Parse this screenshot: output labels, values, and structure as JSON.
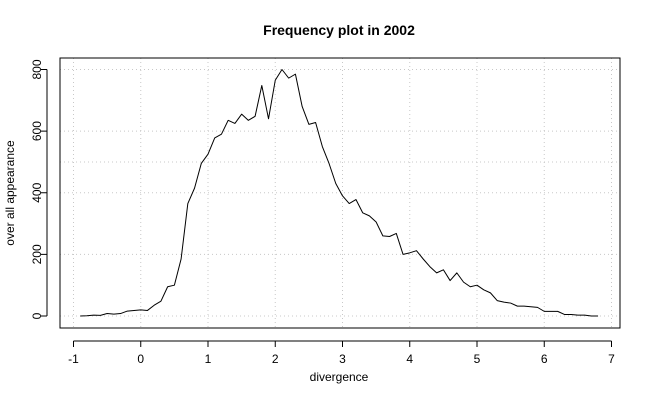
{
  "chart_data": {
    "type": "line",
    "title": "Frequency plot in 2002",
    "xlabel": "divergence",
    "ylabel": "over all appearance",
    "xlim": [
      -1,
      7
    ],
    "ylim": [
      0,
      800
    ],
    "x_ticks": [
      "-1",
      "0",
      "1",
      "2",
      "3",
      "4",
      "5",
      "6",
      "7"
    ],
    "y_ticks": [
      "0",
      "200",
      "400",
      "600",
      "800"
    ],
    "grid": true,
    "grid_extra_y": 500,
    "colors": {
      "line": "#000000",
      "grid": "#c8c8c8",
      "frame": "#000000"
    },
    "series": [
      {
        "x": [
          -0.9,
          -0.8,
          -0.7,
          -0.6,
          -0.5,
          -0.4,
          -0.3,
          -0.2,
          -0.1,
          0.0,
          0.1,
          0.2,
          0.3,
          0.4,
          0.5,
          0.6,
          0.7,
          0.8,
          0.9,
          1.0,
          1.1,
          1.2,
          1.3,
          1.4,
          1.5,
          1.6,
          1.7,
          1.8,
          1.9,
          2.0,
          2.1,
          2.2,
          2.3,
          2.4,
          2.5,
          2.6,
          2.7,
          2.8,
          2.9,
          3.0,
          3.1,
          3.2,
          3.3,
          3.4,
          3.5,
          3.6,
          3.7,
          3.8,
          3.9,
          4.0,
          4.1,
          4.2,
          4.3,
          4.4,
          4.5,
          4.6,
          4.7,
          4.8,
          4.9,
          5.0,
          5.1,
          5.2,
          5.3,
          5.4,
          5.5,
          5.6,
          5.7,
          5.8,
          5.9,
          6.0,
          6.1,
          6.2,
          6.3,
          6.4,
          6.5,
          6.6,
          6.7,
          6.8
        ],
        "values": [
          0,
          1,
          3,
          2,
          8,
          6,
          8,
          16,
          18,
          20,
          18,
          35,
          48,
          95,
          100,
          185,
          365,
          415,
          495,
          525,
          578,
          590,
          635,
          625,
          655,
          635,
          648,
          748,
          640,
          765,
          800,
          772,
          785,
          680,
          622,
          628,
          550,
          495,
          430,
          390,
          365,
          378,
          335,
          325,
          305,
          260,
          258,
          268,
          200,
          205,
          212,
          185,
          160,
          140,
          150,
          115,
          140,
          110,
          95,
          100,
          85,
          75,
          50,
          45,
          42,
          32,
          32,
          30,
          28,
          15,
          15,
          15,
          5,
          5,
          3,
          3,
          0,
          0
        ]
      }
    ]
  }
}
